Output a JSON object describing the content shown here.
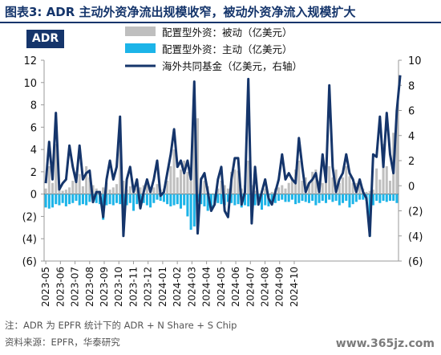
{
  "header": {
    "title": "图表3:  ADR 主动外资净流出规模收窄，被动外资净流入规模扩大",
    "badge": "ADR"
  },
  "footer": {
    "note": "注：ADR 为 EPFR 统计下的 ADR + N Share + S Chip",
    "source": "资料来源：EPFR，华泰研究",
    "watermark": "www.365jz.com"
  },
  "colors": {
    "passive": "#bfbfbf",
    "active": "#1cb4e8",
    "overseas": "#15356b",
    "title": "#15356b"
  },
  "chart_data": {
    "type": "bar",
    "legend": [
      {
        "label": "配置型外资：被动（亿美元）",
        "kind": "bar",
        "color": "#bfbfbf"
      },
      {
        "label": "配置型外资：主动（亿美元）",
        "kind": "bar",
        "color": "#1cb4e8"
      },
      {
        "label": "海外共同基金（亿美元，右轴）",
        "kind": "line",
        "color": "#15356b"
      }
    ],
    "y_left": {
      "min": -6,
      "max": 12,
      "ticks": [
        12,
        10,
        8,
        6,
        4,
        2,
        0,
        -2,
        -4,
        -6
      ],
      "tick_labels": [
        "12",
        "10",
        "8",
        "6",
        "4",
        "2",
        "0",
        "(2)",
        "(4)",
        "(6)"
      ]
    },
    "y_right": {
      "min": -6,
      "max": 10,
      "ticks": [
        10,
        8,
        6,
        4,
        2,
        0,
        -2,
        -4,
        -6
      ],
      "tick_labels": [
        "10",
        "8",
        "6",
        "4",
        "2",
        "0",
        "(2)",
        "(4)",
        "(6)"
      ]
    },
    "x_tick_labels": [
      "2023-05",
      "2023-06",
      "2023-07",
      "2023-08",
      "2023-09",
      "2023-10",
      "2023-11",
      "2023-12",
      "2024-01",
      "2024-02",
      "2024-03",
      "2024-04",
      "2024-05",
      "2024-06",
      "2024-07",
      "2024-08",
      "2024-09",
      "2024-10"
    ],
    "weeks_per_month": 4.33,
    "passive": [
      0.5,
      2.5,
      1.0,
      4.5,
      0.8,
      0.3,
      0.4,
      0.6,
      1.2,
      2.0,
      1.8,
      0.7,
      2.5,
      1.5,
      0.8,
      0.5,
      0.3,
      0.6,
      1.0,
      0.4,
      0.6,
      0.9,
      4.5,
      1.2,
      0.4,
      0.7,
      0.3,
      0.5,
      0.6,
      0.8,
      0.9,
      0.5,
      0.6,
      0.9,
      0.4,
      0.5,
      1.2,
      2.5,
      4.0,
      1.5,
      2.2,
      3.0,
      2.0,
      1.2,
      8.5,
      6.8,
      1.5,
      1.2,
      0.7,
      -0.3,
      -0.5,
      0.5,
      1.2,
      0.8,
      0.5,
      2.0,
      2.2,
      2.1,
      0.5,
      0.8,
      3.0,
      0.8,
      0.3,
      -0.5,
      0.3,
      0.5,
      -0.3,
      0.2,
      0.5,
      0.6,
      0.8,
      0.5,
      1.0,
      1.5,
      2.2,
      3.0,
      1.2,
      1.5,
      1.0,
      2.0,
      2.2,
      1.2,
      1.0,
      1.8,
      2.5,
      1.5,
      2.2,
      1.0,
      1.5,
      2.5,
      1.6,
      1.0,
      1.0,
      1.0,
      0.5,
      0.2,
      0.3,
      0.4,
      2.3,
      1.3,
      4.5,
      2.5,
      1.2,
      5.5,
      7.5
    ],
    "active": [
      -1.2,
      -1.3,
      -1.2,
      -0.9,
      -1.0,
      -0.8,
      -1.1,
      -0.9,
      -0.8,
      -0.6,
      -1.0,
      -0.9,
      -1.0,
      -0.7,
      -0.6,
      -0.8,
      -0.9,
      -2.3,
      -1.0,
      -0.9,
      -1.0,
      -0.8,
      -0.9,
      -1.2,
      -1.0,
      -0.8,
      -1.5,
      -0.9,
      -0.6,
      -0.8,
      -1.0,
      -1.2,
      -0.8,
      -0.5,
      -0.6,
      -0.7,
      -0.9,
      -1.1,
      -1.0,
      -0.9,
      -1.3,
      -1.0,
      -2.0,
      -3.2,
      -2.9,
      -0.7,
      -0.9,
      -1.1,
      -1.5,
      -1.3,
      -1.0,
      -0.8,
      -0.9,
      -1.0,
      -0.7,
      -0.8,
      -1.0,
      -0.9,
      -1.2,
      -1.0,
      -1.1,
      -0.9,
      -1.0,
      -0.8,
      -1.4,
      -1.0,
      -1.1,
      -0.9,
      -0.8,
      -0.6,
      -0.5,
      -0.7,
      -0.7,
      -0.5,
      -0.9,
      -0.8,
      -0.6,
      -0.7,
      -0.8,
      -0.6,
      -1.0,
      -0.8,
      -0.6,
      -0.8,
      -0.5,
      -0.7,
      -0.6,
      -1.0,
      -0.8,
      -0.6,
      -1.2,
      -0.9,
      -0.7,
      -0.5,
      -0.5,
      -0.6,
      -3.8,
      -1.0,
      -0.6,
      -0.8,
      -0.6,
      -0.7,
      -0.6,
      -0.6,
      -0.8
    ],
    "overseas": [
      0.2,
      3.5,
      0.5,
      5.8,
      -0.3,
      0.2,
      0.5,
      3.2,
      1.5,
      0.3,
      3.2,
      0.5,
      1.0,
      1.2,
      -1.3,
      -0.5,
      -0.5,
      -2.5,
      0.5,
      2.0,
      0.5,
      1.5,
      5.5,
      -4.0,
      0.5,
      1.5,
      -0.5,
      0.5,
      -1.8,
      -0.5,
      0.5,
      -0.5,
      0.5,
      2.0,
      -0.8,
      -0.5,
      1.0,
      2.5,
      4.5,
      1.5,
      2.0,
      1.0,
      2.0,
      0.5,
      8.3,
      -3.8,
      0.5,
      1.0,
      -0.5,
      -2.0,
      -1.5,
      0.5,
      1.5,
      -2.0,
      -2.5,
      0.5,
      2.2,
      2.2,
      -1.5,
      -0.5,
      8.5,
      -3.0,
      1.5,
      -1.5,
      -0.5,
      0.5,
      -1.0,
      -1.5,
      -0.5,
      0.5,
      2.5,
      0.5,
      1.0,
      0.5,
      0.2,
      3.8,
      1.5,
      -0.5,
      0.2,
      0.5,
      1.0,
      -0.5,
      2.5,
      0.3,
      8.0,
      1.5,
      -0.5,
      0.5,
      1.0,
      2.5,
      1.0,
      0.5,
      -0.5,
      0.5,
      -0.5,
      -1.0,
      -4.0,
      2.5,
      2.3,
      5.5,
      1.5,
      5.8,
      2.5,
      1.0,
      6.0,
      8.8
    ]
  }
}
